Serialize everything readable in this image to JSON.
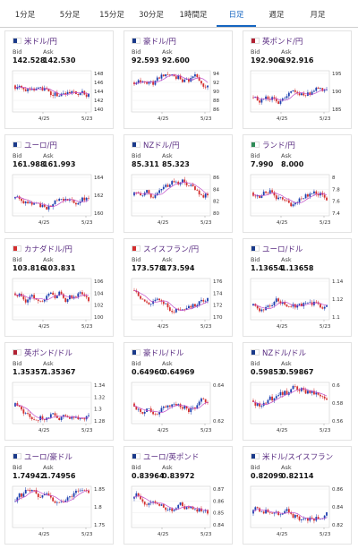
{
  "tabs": [
    {
      "label": "1分足",
      "active": false
    },
    {
      "label": "5分足",
      "active": false
    },
    {
      "label": "15分足",
      "active": false
    },
    {
      "label": "30分足",
      "active": false
    },
    {
      "label": "1時間足",
      "active": false
    },
    {
      "label": "日足",
      "active": true
    },
    {
      "label": "週足",
      "active": false
    },
    {
      "label": "月足",
      "active": false
    }
  ],
  "bid_label": "Bid",
  "ask_label": "Ask",
  "cards": [
    {
      "pair": "米ドル/円",
      "bid": "142.528",
      "ask": "142.530",
      "yticks": [
        "148",
        "146",
        "144",
        "142",
        "140"
      ],
      "xticks": [
        "4/25",
        "5/23"
      ],
      "flag": "#1a3a8a"
    },
    {
      "pair": "豪ドル/円",
      "bid": "92.593",
      "ask": "92.600",
      "yticks": [
        "94",
        "92",
        "90",
        "88",
        "86"
      ],
      "xticks": [
        "4/25",
        "5/23"
      ],
      "flag": "#1a3a8a"
    },
    {
      "pair": "英ポンド/円",
      "bid": "192.906",
      "ask": "192.916",
      "yticks": [
        "195",
        "190",
        "185"
      ],
      "xticks": [
        "4/25",
        "5/23"
      ],
      "flag": "#b22234"
    },
    {
      "pair": "ユーロ/円",
      "bid": "161.988",
      "ask": "161.993",
      "yticks": [
        "164",
        "162",
        "160"
      ],
      "xticks": [
        "4/25",
        "5/23"
      ],
      "flag": "#1a3a8a"
    },
    {
      "pair": "NZドル/円",
      "bid": "85.311",
      "ask": "85.323",
      "yticks": [
        "86",
        "84",
        "82",
        "80"
      ],
      "xticks": [
        "4/25",
        "5/23"
      ],
      "flag": "#1a3a8a"
    },
    {
      "pair": "ランド/円",
      "bid": "7.990",
      "ask": "8.000",
      "yticks": [
        "8",
        "7.8",
        "7.6",
        "7.4"
      ],
      "xticks": [
        "4/25",
        "5/23"
      ],
      "flag": "#2e8b57"
    },
    {
      "pair": "カナダドル/円",
      "bid": "103.816",
      "ask": "103.831",
      "yticks": [
        "106",
        "104",
        "102",
        "100"
      ],
      "xticks": [
        "4/25",
        "5/23"
      ],
      "flag": "#d32f2f"
    },
    {
      "pair": "スイスフラン/円",
      "bid": "173.578",
      "ask": "173.594",
      "yticks": [
        "176",
        "174",
        "172",
        "170"
      ],
      "xticks": [
        "4/25",
        "5/23"
      ],
      "flag": "#d32f2f"
    },
    {
      "pair": "ユーロ/ドル",
      "bid": "1.13654",
      "ask": "1.13658",
      "yticks": [
        "1.14",
        "1.12",
        "1.1"
      ],
      "xticks": [
        "4/25",
        "5/23"
      ],
      "flag": "#1a3a8a"
    },
    {
      "pair": "英ポンド/ドル",
      "bid": "1.35357",
      "ask": "1.35367",
      "yticks": [
        "1.34",
        "1.32",
        "1.3",
        "1.28"
      ],
      "xticks": [
        "4/25",
        "5/23"
      ],
      "flag": "#b22234"
    },
    {
      "pair": "豪ドル/ドル",
      "bid": "0.64960",
      "ask": "0.64969",
      "yticks": [
        "0.64",
        "0.62"
      ],
      "xticks": [
        "4/25",
        "5/23"
      ],
      "flag": "#1a3a8a"
    },
    {
      "pair": "NZドル/ドル",
      "bid": "0.59853",
      "ask": "0.59867",
      "yticks": [
        "0.6",
        "0.58",
        "0.56"
      ],
      "xticks": [
        "4/25",
        "5/23"
      ],
      "flag": "#1a3a8a"
    },
    {
      "pair": "ユーロ/豪ドル",
      "bid": "1.74942",
      "ask": "1.74956",
      "yticks": [
        "1.85",
        "1.8",
        "1.75"
      ],
      "xticks": [
        "4/25",
        "5/23"
      ],
      "flag": "#1a3a8a"
    },
    {
      "pair": "ユーロ/英ポンド",
      "bid": "0.83964",
      "ask": "0.83972",
      "yticks": [
        "0.87",
        "0.86",
        "0.85",
        "0.84"
      ],
      "xticks": [
        "4/25",
        "5/23"
      ],
      "flag": "#1a3a8a"
    },
    {
      "pair": "米ドル/スイスフラン",
      "bid": "0.82099",
      "ask": "0.82114",
      "yticks": [
        "0.86",
        "0.84",
        "0.82"
      ],
      "xticks": [
        "4/25",
        "5/23"
      ],
      "flag": "#1a3a8a"
    }
  ]
}
